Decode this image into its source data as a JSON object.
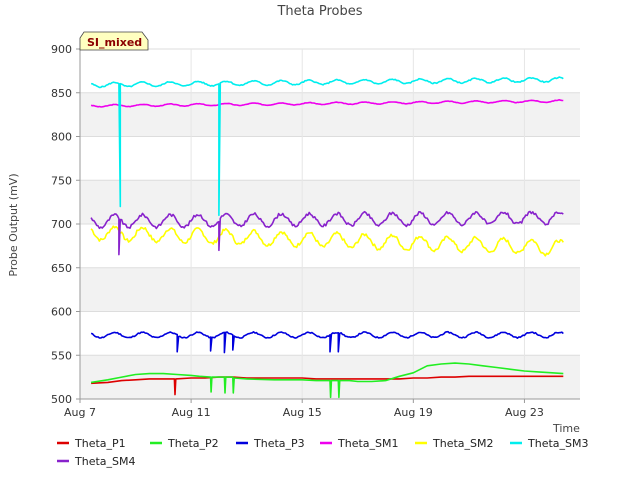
{
  "chart_data": {
    "type": "line",
    "title": "Theta Probes",
    "xlabel": "Time",
    "ylabel": "Probe Output (mV)",
    "badge": "SI_mixed",
    "xlim": [
      7,
      25
    ],
    "ylim": [
      500,
      900
    ],
    "yticks": [
      500,
      550,
      600,
      650,
      700,
      750,
      800,
      850,
      900
    ],
    "xticks": [
      {
        "v": 7,
        "label": "Aug 7"
      },
      {
        "v": 11,
        "label": "Aug 11"
      },
      {
        "v": 15,
        "label": "Aug 15"
      },
      {
        "v": 19,
        "label": "Aug 19"
      },
      {
        "v": 23,
        "label": "Aug 23"
      }
    ],
    "series": [
      {
        "name": "Theta_P1",
        "color": "#dd0000",
        "points": [
          [
            7.4,
            518
          ],
          [
            8,
            519
          ],
          [
            8.5,
            521
          ],
          [
            9,
            522
          ],
          [
            9.5,
            523
          ],
          [
            10,
            523
          ],
          [
            10.4,
            523
          ],
          [
            10.42,
            505
          ],
          [
            10.45,
            523
          ],
          [
            11,
            524
          ],
          [
            11.5,
            524
          ],
          [
            12,
            525
          ],
          [
            12.5,
            525
          ],
          [
            13,
            524
          ],
          [
            13.5,
            524
          ],
          [
            14,
            524
          ],
          [
            14.5,
            524
          ],
          [
            15,
            524
          ],
          [
            15.5,
            523
          ],
          [
            16,
            523
          ],
          [
            16.5,
            523
          ],
          [
            17,
            523
          ],
          [
            17.5,
            523
          ],
          [
            18,
            523
          ],
          [
            18.5,
            523
          ],
          [
            19,
            524
          ],
          [
            19.5,
            524
          ],
          [
            20,
            525
          ],
          [
            20.5,
            525
          ],
          [
            21,
            526
          ],
          [
            21.5,
            526
          ],
          [
            22,
            526
          ],
          [
            22.5,
            526
          ],
          [
            23,
            526
          ],
          [
            23.5,
            526
          ],
          [
            24,
            526
          ],
          [
            24.4,
            526
          ]
        ]
      },
      {
        "name": "Theta_P2",
        "color": "#22ee22",
        "points": [
          [
            7.4,
            519
          ],
          [
            8,
            522
          ],
          [
            8.5,
            525
          ],
          [
            9,
            528
          ],
          [
            9.5,
            529
          ],
          [
            10,
            529
          ],
          [
            10.5,
            528
          ],
          [
            11,
            527
          ],
          [
            11.3,
            526
          ],
          [
            11.7,
            525
          ],
          [
            11.72,
            508
          ],
          [
            11.75,
            525
          ],
          [
            12.2,
            525
          ],
          [
            12.22,
            507
          ],
          [
            12.25,
            525
          ],
          [
            12.5,
            525
          ],
          [
            12.52,
            507
          ],
          [
            12.55,
            524
          ],
          [
            13,
            523
          ],
          [
            14,
            522
          ],
          [
            15,
            522
          ],
          [
            15.5,
            521
          ],
          [
            16,
            521
          ],
          [
            16.02,
            502
          ],
          [
            16.05,
            521
          ],
          [
            16.3,
            521
          ],
          [
            16.32,
            502
          ],
          [
            16.35,
            521
          ],
          [
            16.7,
            521
          ],
          [
            17,
            520
          ],
          [
            17.5,
            520
          ],
          [
            18,
            521
          ],
          [
            18.5,
            526
          ],
          [
            19,
            530
          ],
          [
            19.5,
            538
          ],
          [
            20,
            540
          ],
          [
            20.5,
            541
          ],
          [
            21,
            540
          ],
          [
            21.5,
            538
          ],
          [
            22,
            536
          ],
          [
            22.5,
            534
          ],
          [
            23,
            532
          ],
          [
            23.5,
            531
          ],
          [
            24,
            530
          ],
          [
            24.4,
            529
          ]
        ]
      },
      {
        "name": "Theta_P3",
        "color": "#0000dd",
        "base": 573,
        "amp": 3,
        "trend": 0.3,
        "noiseSeed": 11,
        "spikes": [
          [
            10.5,
            554
          ],
          [
            11.7,
            555
          ],
          [
            12.2,
            553
          ],
          [
            12.5,
            556
          ],
          [
            16.0,
            554
          ],
          [
            16.3,
            554
          ]
        ]
      },
      {
        "name": "Theta_SM1",
        "color": "#ee00ee",
        "base": 835,
        "amp": 1.2,
        "trend": 5.5,
        "noiseSeed": 3,
        "spikes": []
      },
      {
        "name": "Theta_SM2",
        "color": "#ffff00",
        "base": 690,
        "amp": 8,
        "trend": -17,
        "noiseSeed": 7,
        "spikes": []
      },
      {
        "name": "Theta_SM3",
        "color": "#00eeee",
        "base": 859,
        "amp": 2.5,
        "trend": 6,
        "noiseSeed": 5,
        "spikes": [
          [
            8.45,
            720
          ],
          [
            12.0,
            710
          ]
        ],
        "spikeDrops": [
          [
            8.45,
            698
          ],
          [
            12.0,
            697
          ]
        ]
      },
      {
        "name": "Theta_SM4",
        "color": "#8822cc",
        "base": 703,
        "amp": 7,
        "trend": 4,
        "noiseSeed": 9,
        "spikes": [
          [
            8.4,
            665
          ],
          [
            12.0,
            670
          ]
        ]
      }
    ]
  }
}
